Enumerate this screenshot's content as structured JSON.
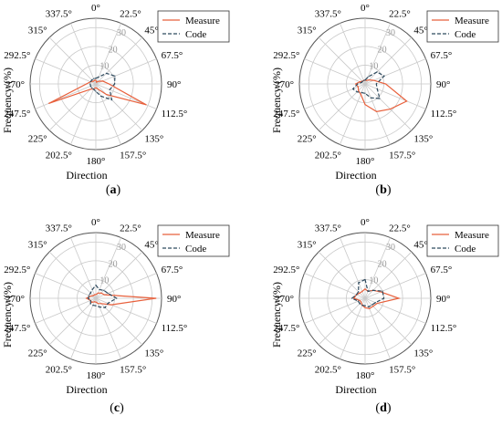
{
  "colors": {
    "measure": "#e8603c",
    "code": "#2e4a5e",
    "grid": "#c9c9c9",
    "radial_label": "#9a9a9a",
    "text": "#000000"
  },
  "chart_data": [
    {
      "type": "polar_line",
      "panel_label": "(a)",
      "xlabel": "Direction",
      "ylabel": "Frequency/(%)",
      "directions": [
        "0°",
        "22.5°",
        "45°",
        "67.5°",
        "90°",
        "112.5°",
        "135°",
        "157.5°",
        "180°",
        "202.5°",
        "225°",
        "247.5°",
        "270°",
        "292.5°",
        "315°",
        "337.5°"
      ],
      "radial_ticks": [
        "10",
        "20",
        "30"
      ],
      "rlim": [
        0,
        35
      ],
      "legend": [
        "Measure",
        "Code"
      ],
      "legend_position": "top-right",
      "series": [
        {
          "name": "Measure",
          "values": [
            2,
            1,
            2,
            4,
            7,
            29,
            8,
            3,
            2,
            3,
            4,
            27,
            5,
            3,
            2,
            2
          ]
        },
        {
          "name": "Code",
          "values": [
            3,
            4,
            8,
            11,
            10,
            8,
            12,
            7,
            4,
            3,
            3,
            3,
            3,
            3,
            3,
            3
          ]
        }
      ]
    },
    {
      "type": "polar_line",
      "panel_label": "(b)",
      "xlabel": "Direction",
      "ylabel": "Frequency/(%)",
      "directions": [
        "0°",
        "22.5°",
        "45°",
        "67.5°",
        "90°",
        "112.5°",
        "135°",
        "157.5°",
        "180°",
        "202.5°",
        "225°",
        "247.5°",
        "270°",
        "292.5°",
        "315°",
        "337.5°"
      ],
      "radial_ticks": [
        "10",
        "20",
        "30"
      ],
      "rlim": [
        0,
        35
      ],
      "legend": [
        "Measure",
        "Code"
      ],
      "legend_position": "top-right",
      "series": [
        {
          "name": "Measure",
          "values": [
            2,
            2,
            3,
            5,
            11,
            24,
            19,
            16,
            11,
            6,
            5,
            4,
            5,
            3,
            2,
            2
          ]
        },
        {
          "name": "Code",
          "values": [
            2,
            4,
            9,
            11,
            6,
            7,
            11,
            8,
            5,
            5,
            6,
            7,
            4,
            2,
            2,
            2
          ]
        }
      ]
    },
    {
      "type": "polar_line",
      "panel_label": "(c)",
      "xlabel": "Direction",
      "ylabel": "Frequency/(%)",
      "directions": [
        "0°",
        "22.5°",
        "45°",
        "67.5°",
        "90°",
        "112.5°",
        "135°",
        "157.5°",
        "180°",
        "202.5°",
        "225°",
        "247.5°",
        "270°",
        "292.5°",
        "315°",
        "337.5°"
      ],
      "radial_ticks": [
        "10",
        "20",
        "30"
      ],
      "rlim": [
        0,
        35
      ],
      "legend": [
        "Measure",
        "Code"
      ],
      "legend_position": "top-right",
      "series": [
        {
          "name": "Measure",
          "values": [
            2,
            3,
            4,
            5,
            32,
            9,
            4,
            3,
            2,
            2,
            3,
            3,
            5,
            3,
            2,
            2
          ]
        },
        {
          "name": "Code",
          "values": [
            7,
            5,
            6,
            7,
            11,
            7,
            7,
            5,
            4,
            4,
            4,
            3,
            4,
            4,
            4,
            5
          ]
        }
      ]
    },
    {
      "type": "polar_line",
      "panel_label": "(d)",
      "xlabel": "Direction",
      "ylabel": "Frequency/(%)",
      "directions": [
        "0°",
        "22.5°",
        "45°",
        "67.5°",
        "90°",
        "112.5°",
        "135°",
        "157.5°",
        "180°",
        "202.5°",
        "225°",
        "247.5°",
        "270°",
        "292.5°",
        "315°",
        "337.5°"
      ],
      "radial_ticks": [
        "10",
        "20",
        "30"
      ],
      "rlim": [
        0,
        35
      ],
      "legend": [
        "Measure",
        "Code"
      ],
      "legend_position": "top-right",
      "series": [
        {
          "name": "Measure",
          "values": [
            5,
            4,
            6,
            9,
            18,
            7,
            6,
            6,
            5,
            4,
            3,
            3,
            6,
            5,
            4,
            4
          ]
        },
        {
          "name": "Code",
          "values": [
            10,
            4,
            6,
            10,
            10,
            6,
            5,
            5,
            4,
            4,
            4,
            4,
            7,
            5,
            5,
            9
          ]
        }
      ]
    }
  ]
}
